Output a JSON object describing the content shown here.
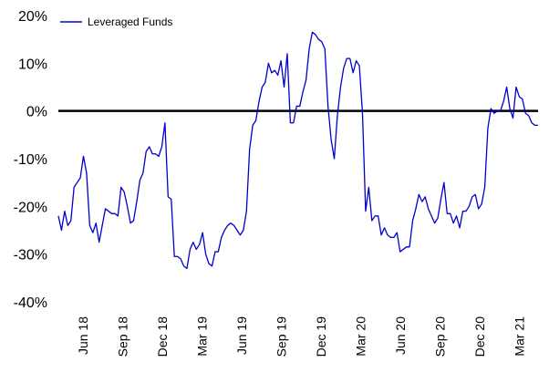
{
  "chart_data": {
    "type": "line",
    "title": "",
    "xlabel": "",
    "ylabel": "",
    "ylim": [
      -40,
      20
    ],
    "y_ticks": [
      "20%",
      "10%",
      "0%",
      "-10%",
      "-20%",
      "-30%",
      "-40%"
    ],
    "y_tick_values": [
      20,
      10,
      0,
      -10,
      -20,
      -30,
      -40
    ],
    "x_ticks": [
      "Jun 18",
      "Sep 18",
      "Dec 18",
      "Mar 19",
      "Jun 19",
      "Sep 19",
      "Dec 19",
      "Mar 20",
      "Jun 20",
      "Sep 20",
      "Dec 20",
      "Mar 21"
    ],
    "zero_line": true,
    "grid": false,
    "legend_position": "top-left",
    "series": [
      {
        "name": "Leveraged Funds",
        "color": "#0000cc",
        "values": [
          -22,
          -25,
          -21,
          -24,
          -23,
          -16,
          -15,
          -14,
          -9.5,
          -13,
          -24,
          -25.5,
          -23.5,
          -27.5,
          -24,
          -20.5,
          -21,
          -21.5,
          -21.5,
          -22,
          -16,
          -17,
          -20,
          -23.5,
          -23,
          -19,
          -14.5,
          -13,
          -8.5,
          -7.5,
          -9,
          -9,
          -9.5,
          -7.5,
          -2.5,
          -18,
          -18.5,
          -30.5,
          -30.5,
          -31,
          -32.5,
          -33,
          -29,
          -27.5,
          -29,
          -28,
          -25.5,
          -30,
          -32,
          -32.5,
          -29.5,
          -29.5,
          -26.5,
          -25,
          -24,
          -23.5,
          -24,
          -25,
          -26,
          -25,
          -21,
          -8,
          -3,
          -2,
          2,
          5,
          6,
          10,
          8,
          8.5,
          7.5,
          10.5,
          5,
          12,
          -2.5,
          -2.5,
          1,
          1,
          4,
          6.5,
          13,
          16.5,
          16,
          15,
          14.5,
          13,
          1,
          -6,
          -10,
          -1,
          5,
          9,
          11,
          11,
          8,
          10.5,
          9.5,
          -0.5,
          -21,
          -16,
          -23,
          -22,
          -22,
          -26,
          -24.5,
          -26,
          -26.5,
          -26.5,
          -25.5,
          -29.5,
          -29,
          -28.5,
          -28.5,
          -23,
          -20.5,
          -17.5,
          -19,
          -18,
          -20.5,
          -22,
          -23.5,
          -22.5,
          -18.5,
          -15,
          -21.5,
          -21.5,
          -23.5,
          -22,
          -24.5,
          -21,
          -21,
          -20,
          -18,
          -17.5,
          -20.5,
          -19.5,
          -16,
          -3.5,
          0.5,
          -0.5,
          0,
          0,
          2,
          5,
          0.5,
          -1.5,
          5,
          3,
          2.5,
          -0.5,
          -1,
          -2.5,
          -3,
          -3
        ]
      }
    ]
  }
}
